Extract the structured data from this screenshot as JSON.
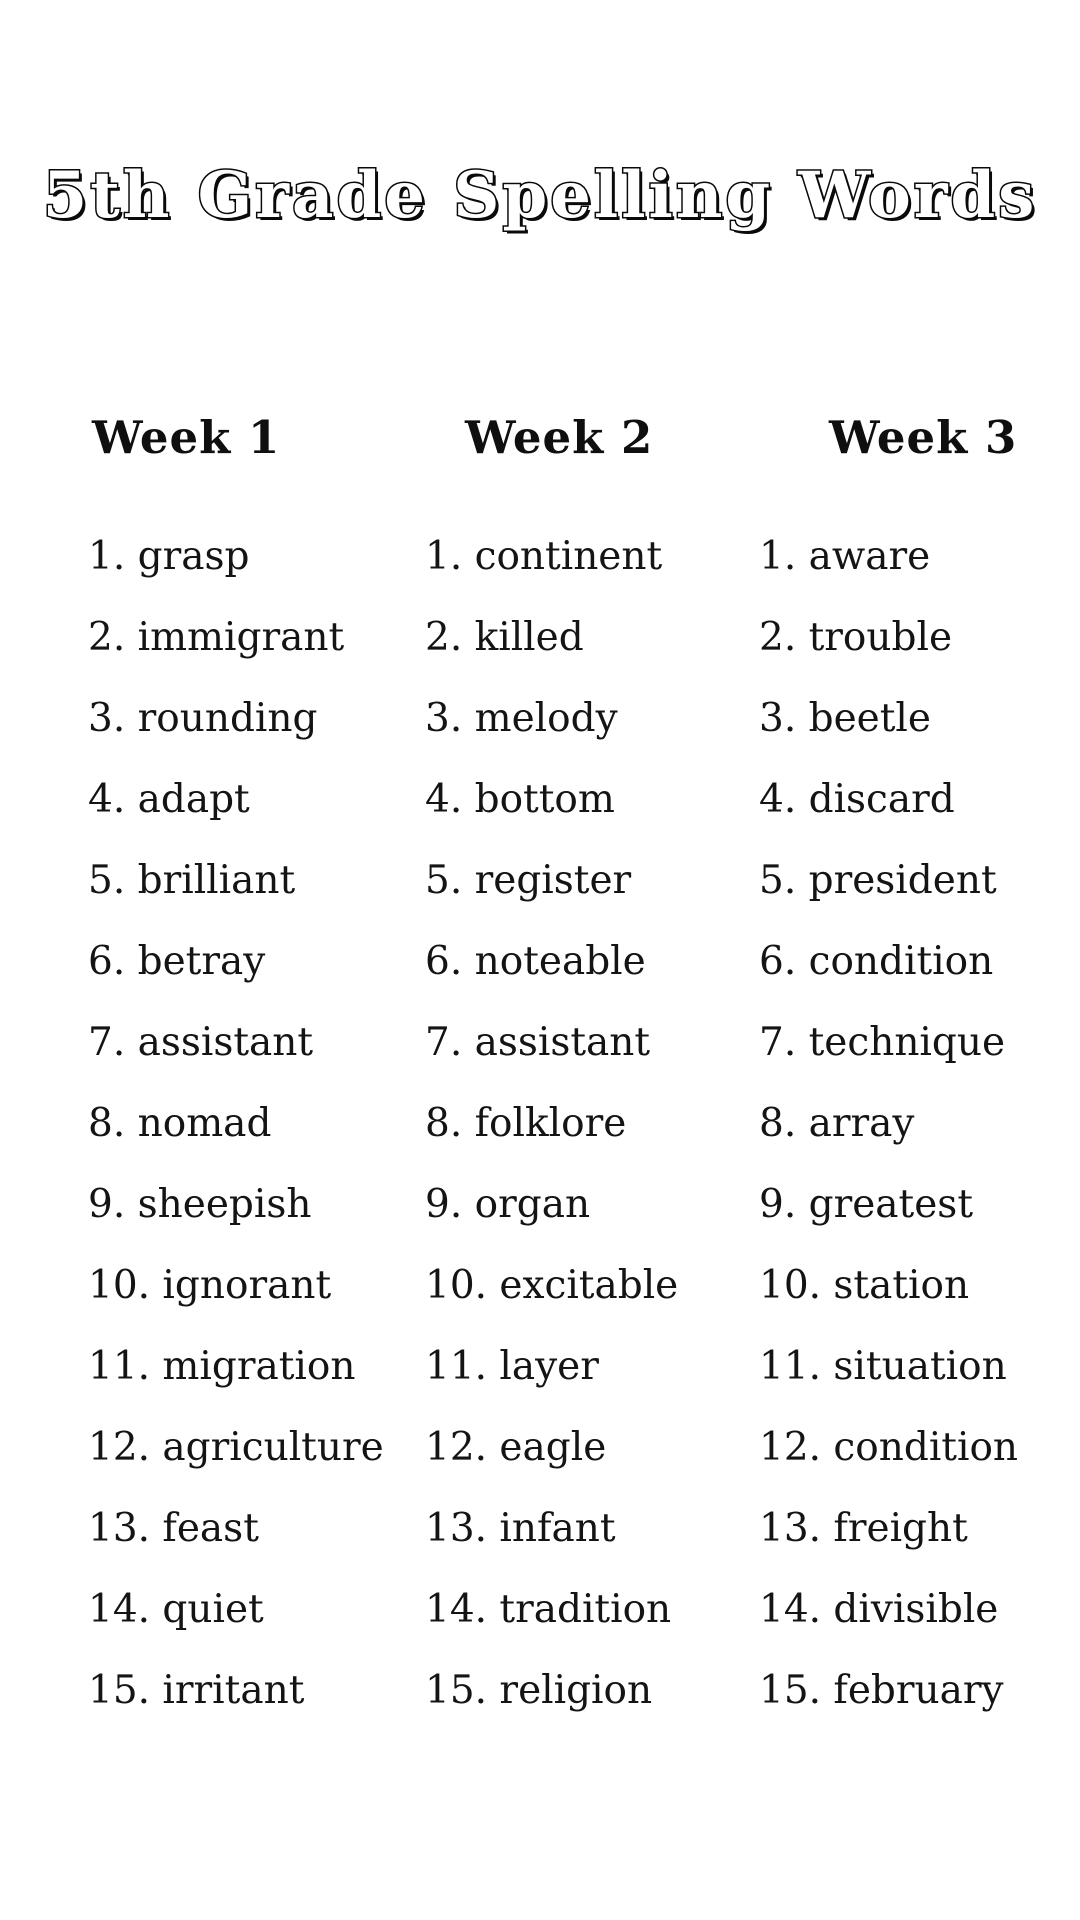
{
  "title": "5th Grade Spelling Words",
  "colors": {
    "background": "#ffffff",
    "text": "#141414",
    "title_fill": "#ffffff",
    "title_outline": "#0a0a0a"
  },
  "columns": [
    {
      "label": "Week 1",
      "words": [
        "grasp",
        "immigrant",
        "rounding",
        "adapt",
        "brilliant",
        "betray",
        "assistant",
        "nomad",
        "sheepish",
        "ignorant",
        "migration",
        "agriculture",
        "feast",
        "quiet",
        "irritant"
      ]
    },
    {
      "label": "Week 2",
      "words": [
        "continent",
        "killed",
        "melody",
        "bottom",
        "register",
        "noteable",
        "assistant",
        "folklore",
        "organ",
        "excitable",
        "layer",
        "eagle",
        "infant",
        "tradition",
        "religion"
      ]
    },
    {
      "label": "Week 3",
      "words": [
        "aware",
        "trouble",
        "beetle",
        "discard",
        "president",
        "condition",
        "technique",
        "array",
        "greatest",
        "station",
        "situation",
        "condition",
        "freight",
        "divisible",
        "february"
      ]
    }
  ],
  "number_format": {
    "separator": ". ",
    "start": 1
  }
}
